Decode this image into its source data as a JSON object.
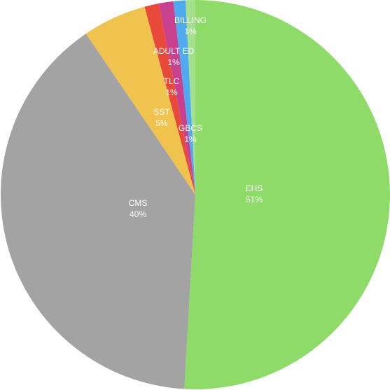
{
  "chart_data": {
    "type": "pie",
    "title": "",
    "start_angle_deg": 0,
    "direction": "clockwise",
    "legend": "none",
    "slices": [
      {
        "label": "EHS",
        "pct_label": "51%",
        "value": 50.9,
        "color": "#8EDB69"
      },
      {
        "label": "CMS",
        "pct_label": "40%",
        "value": 39.6,
        "color": "#A3A3A3"
      },
      {
        "label": "SST",
        "pct_label": "5%",
        "value": 5.3,
        "color": "#F0C34F"
      },
      {
        "label": "GBCS",
        "pct_label": "1%",
        "value": 1.2,
        "color": "#E9493B"
      },
      {
        "label": "TLC",
        "pct_label": "1%",
        "value": 1.2,
        "color": "#C8418E"
      },
      {
        "label": "ADULT ED",
        "pct_label": "1%",
        "value": 1.0,
        "color": "#4FAAF0"
      },
      {
        "label": "BILLING",
        "pct_label": "1%",
        "value": 0.8,
        "color": "#A5E08E"
      }
    ]
  }
}
